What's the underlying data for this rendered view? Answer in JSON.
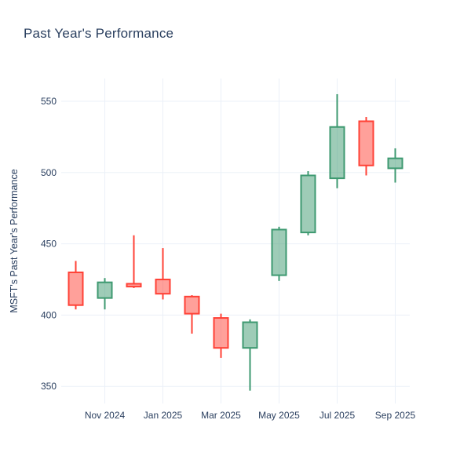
{
  "chart_data": {
    "type": "candlestick",
    "title": "Past Year's Performance",
    "xlabel": "",
    "ylabel": "MSFT's Past Year's Performance",
    "x": [
      "Oct 2024",
      "Nov 2024",
      "Dec 2024",
      "Jan 2025",
      "Feb 2025",
      "Mar 2025",
      "Apr 2025",
      "May 2025",
      "Jun 2025",
      "Jul 2025",
      "Aug 2025",
      "Sep 2025"
    ],
    "open": [
      430,
      412,
      422,
      425,
      413,
      398,
      377,
      428,
      458,
      496,
      536,
      503
    ],
    "high": [
      438,
      426,
      456,
      447,
      414,
      401,
      397,
      462,
      501,
      555,
      539,
      517
    ],
    "low": [
      404,
      404,
      419,
      411,
      387,
      370,
      347,
      424,
      456,
      489,
      498,
      493
    ],
    "close": [
      407,
      423,
      420,
      415,
      401,
      377,
      395,
      460,
      498,
      532,
      505,
      510
    ],
    "ylim": [
      338,
      566
    ],
    "yticks": [
      350,
      400,
      450,
      500,
      550
    ],
    "xticks": [
      {
        "label": "Nov 2024",
        "index": 1
      },
      {
        "label": "Jan 2025",
        "index": 3
      },
      {
        "label": "Mar 2025",
        "index": 5
      },
      {
        "label": "May 2025",
        "index": 7
      },
      {
        "label": "Jul 2025",
        "index": 9
      },
      {
        "label": "Sep 2025",
        "index": 11
      }
    ],
    "grid": true,
    "legend_position": "none",
    "increasing_color": "#3D9970",
    "decreasing_color": "#FF4136",
    "grid_color": "#EBF0F8",
    "text_color": "#2a3f5f",
    "background_color": "#ffffff"
  }
}
